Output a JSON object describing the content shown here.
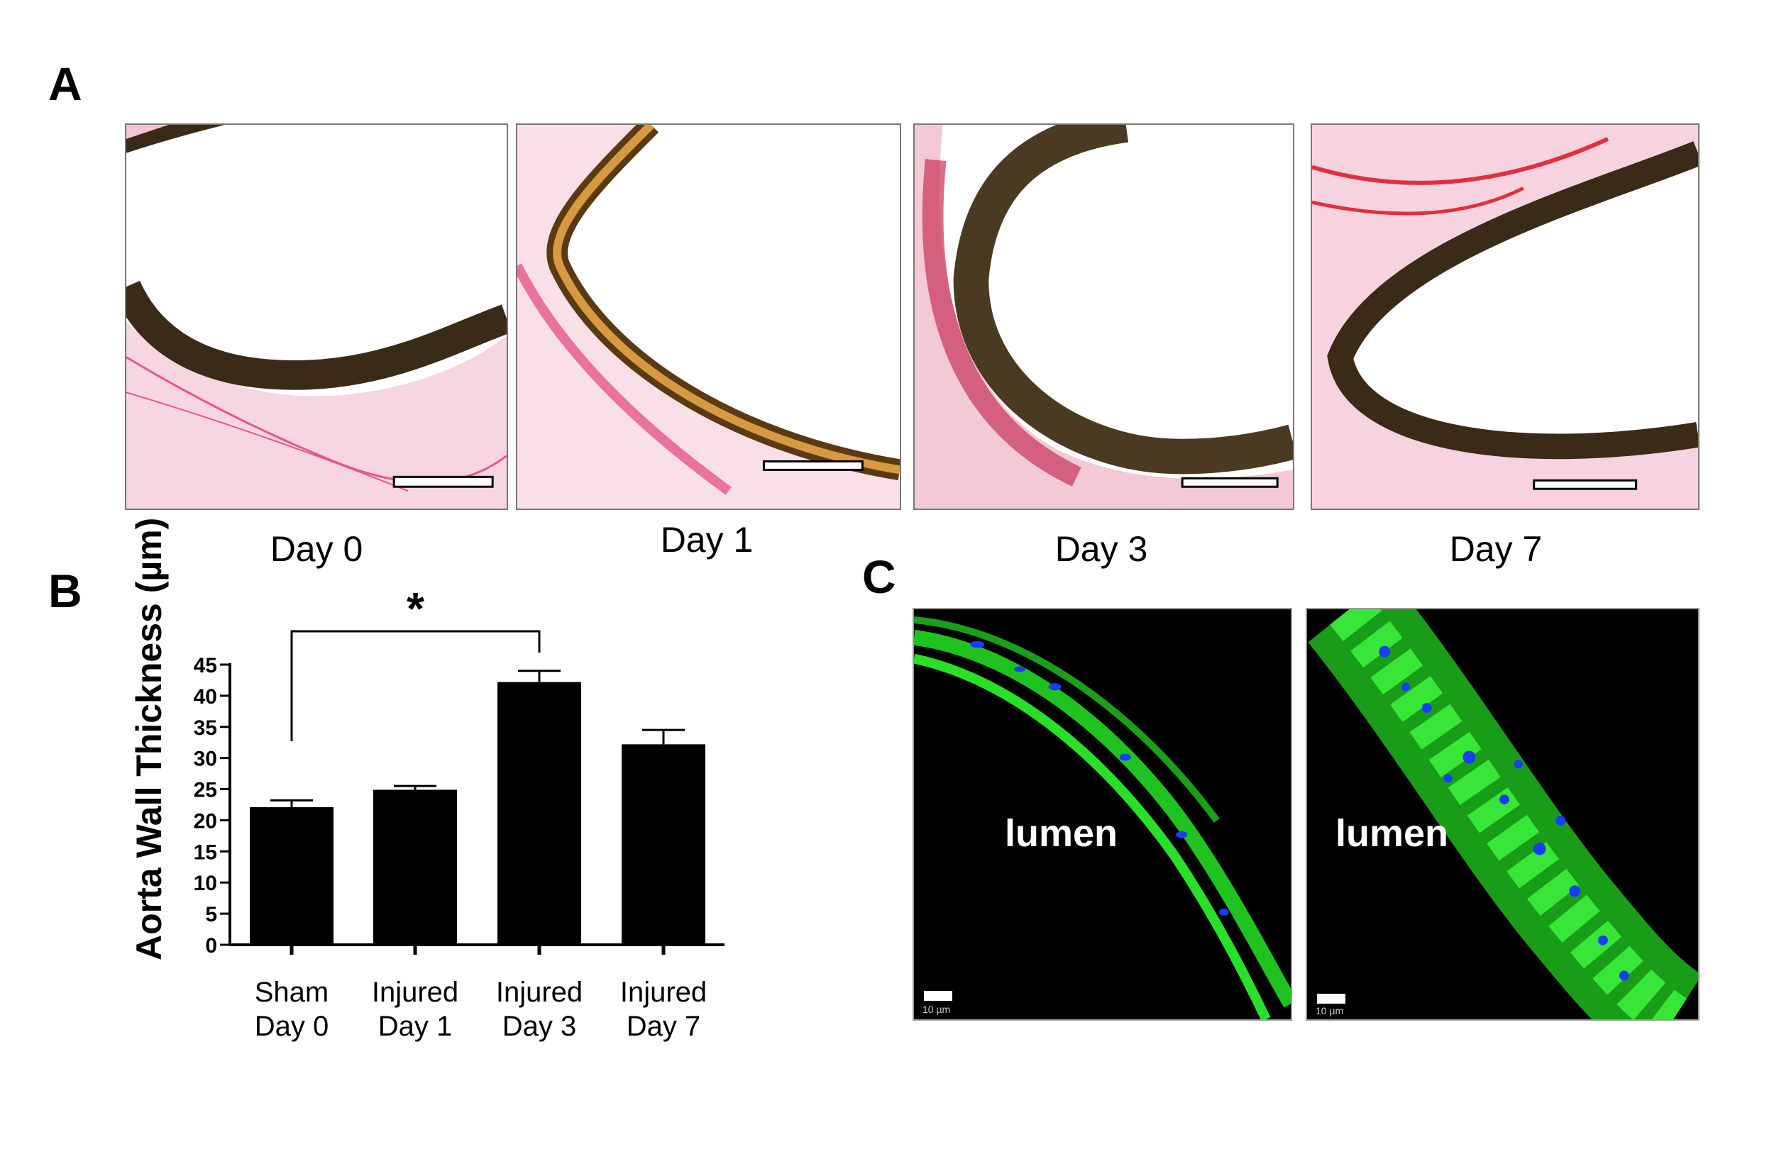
{
  "panels": {
    "a": "A",
    "b": "B",
    "c": "C"
  },
  "histology": [
    {
      "label": "Day 0"
    },
    {
      "label": "Day 1"
    },
    {
      "label": "Day 3"
    },
    {
      "label": "Day 7"
    }
  ],
  "fluorescence": [
    {
      "label": "lumen",
      "scale": "10 µm"
    },
    {
      "label": "lumen",
      "scale": "10 µm"
    }
  ],
  "colors": {
    "bar": "#000000",
    "green": "#22dd22",
    "blue": "#1a3cff",
    "pink": "#e8558a",
    "brown": "#4a3a22"
  },
  "chart_data": {
    "type": "bar",
    "categories": [
      [
        "Sham",
        "Day 0"
      ],
      [
        "Injured",
        "Day 1"
      ],
      [
        "Injured",
        "Day 3"
      ],
      [
        "Injured",
        "Day 7"
      ]
    ],
    "values": [
      22.1,
      24.9,
      42.2,
      32.2
    ],
    "errors": [
      1.1,
      0.6,
      1.8,
      2.3
    ],
    "ylabel": "Aorta Wall Thickness (µm)",
    "xlabel": "",
    "ylim": [
      0,
      45
    ],
    "yticks": [
      0,
      5,
      10,
      15,
      20,
      25,
      30,
      35,
      40,
      45
    ],
    "significance": {
      "from": 0,
      "to": 2,
      "label": "*"
    }
  }
}
